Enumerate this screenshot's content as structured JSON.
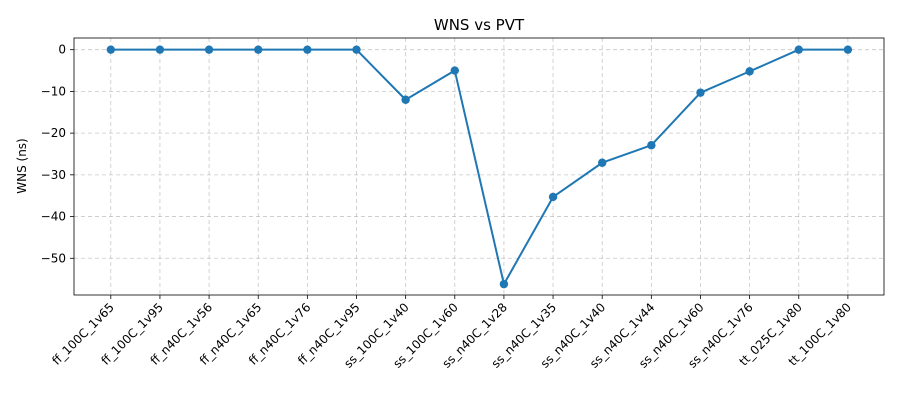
{
  "chart_data": {
    "type": "line",
    "title": "WNS vs PVT",
    "xlabel": "",
    "ylabel": "WNS (ns)",
    "categories": [
      "ff_100C_1v65",
      "ff_100C_1v95",
      "ff_n40C_1v56",
      "ff_n40C_1v65",
      "ff_n40C_1v76",
      "ff_n40C_1v95",
      "ss_100C_1v40",
      "ss_100C_1v60",
      "ss_n40C_1v28",
      "ss_n40C_1v35",
      "ss_n40C_1v40",
      "ss_n40C_1v44",
      "ss_n40C_1v60",
      "ss_n40C_1v76",
      "tt_025C_1v80",
      "tt_100C_1v80"
    ],
    "series": [
      {
        "values": [
          0,
          0,
          0,
          0,
          0,
          0,
          -12.0,
          -5.0,
          -56.2,
          -35.3,
          -27.1,
          -22.9,
          -10.3,
          -5.2,
          0,
          0
        ],
        "color": "#1f77b4"
      }
    ],
    "ylim": [
      -58.8,
      2.8
    ],
    "yticks": [
      0,
      -10,
      -20,
      -30,
      -40,
      -50
    ],
    "grid": true
  }
}
